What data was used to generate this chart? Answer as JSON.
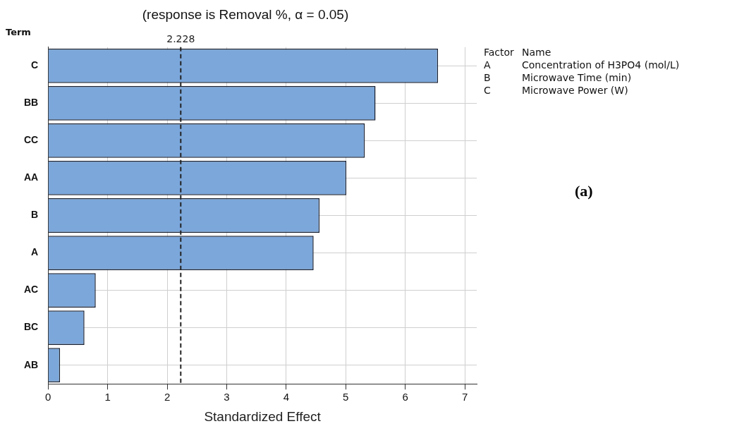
{
  "chart_data": {
    "type": "bar",
    "orientation": "horizontal",
    "title": "(response is Removal %, α = 0.05)",
    "xlabel": "Standardized Effect",
    "ylabel": "Term",
    "categories": [
      "C",
      "BB",
      "CC",
      "AA",
      "B",
      "A",
      "AC",
      "BC",
      "AB"
    ],
    "values": [
      6.55,
      5.5,
      5.32,
      5.01,
      4.56,
      4.46,
      0.8,
      0.61,
      0.2
    ],
    "color": "#7ba7db",
    "xlim": [
      0,
      7.2
    ],
    "xticks": [
      0,
      1,
      2,
      3,
      4,
      5,
      6,
      7
    ],
    "grid": true,
    "legend": false,
    "ref_lines": [
      {
        "axis": "x",
        "value": 2.228,
        "label": "2.228",
        "line_style": "dashed",
        "color": "#222222"
      }
    ],
    "annotations": [
      "Factor",
      "Name",
      "A",
      "Concentration of H3PO4 (mol/L)",
      "B",
      "Microwave Time (min)",
      "C",
      "Microwave Power (W)",
      "(a)"
    ]
  }
}
